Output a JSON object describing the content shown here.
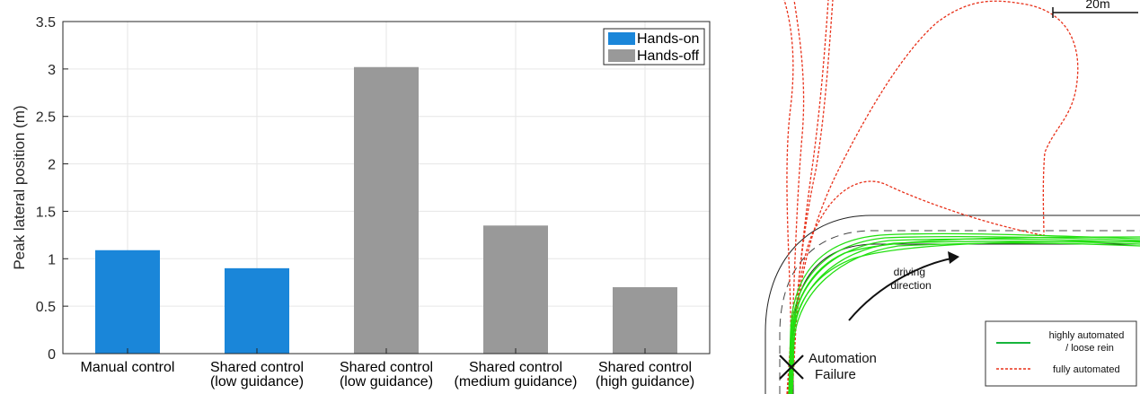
{
  "chart_data": [
    {
      "type": "bar",
      "ylabel": "Peak lateral position (m)",
      "ylim": [
        0,
        3.5
      ],
      "yticks": [
        "0",
        "0.5",
        "1",
        "1.5",
        "2",
        "2.5",
        "3",
        "3.5"
      ],
      "grid": true,
      "legend_position": "top-right",
      "categories": [
        {
          "line1": "Manual control",
          "line2": ""
        },
        {
          "line1": "Shared control",
          "line2": "(low guidance)"
        },
        {
          "line1": "Shared control",
          "line2": "(low guidance)"
        },
        {
          "line1": "Shared control",
          "line2": "(medium guidance)"
        },
        {
          "line1": "Shared control",
          "line2": "(high guidance)"
        }
      ],
      "values": [
        1.09,
        0.9,
        3.02,
        1.35,
        0.7
      ],
      "bar_groups": [
        "Hands-on",
        "Hands-on",
        "Hands-off",
        "Hands-off",
        "Hands-off"
      ],
      "legend": [
        {
          "name": "Hands-on",
          "color": "#1a86d9"
        },
        {
          "name": "Hands-off",
          "color": "#999999"
        }
      ]
    },
    {
      "type": "diagram",
      "scale_label": "20m",
      "arrow_label": [
        "driving",
        "direction"
      ],
      "marker_label": [
        "Automation",
        "Failure"
      ],
      "legend": [
        {
          "name": [
            "highly automated",
            "/ loose rein"
          ],
          "color": "#16b53c",
          "style": "solid"
        },
        {
          "name": [
            "fully automated"
          ],
          "color": "#e8311a",
          "style": "dashed"
        }
      ]
    }
  ]
}
